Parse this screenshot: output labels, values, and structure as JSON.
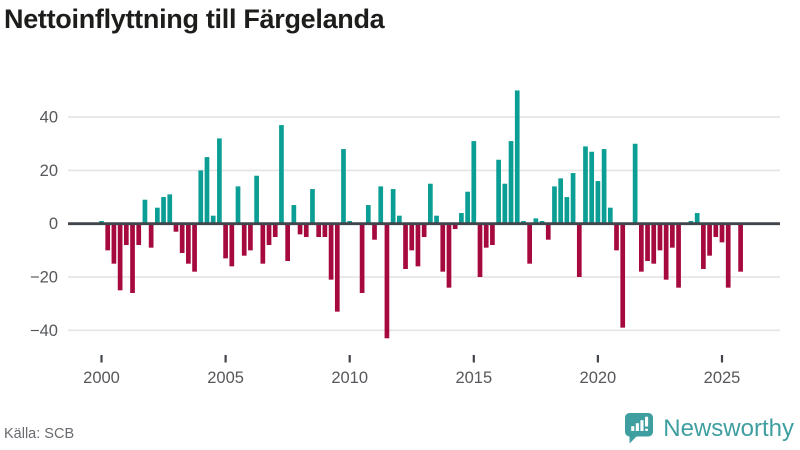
{
  "header": {
    "title": "Nettoinflyttning till Färgelanda"
  },
  "footer": {
    "source": "Källa: SCB",
    "brand": "Newsworthy"
  },
  "colors": {
    "positive": "#0b9e95",
    "negative": "#a6093d",
    "brand": "#3f9fa0",
    "grid": "#e4e4e4",
    "zero_line": "#41454c",
    "axis_text": "#56585b",
    "tick_mark": "#41454c"
  },
  "chart_data": {
    "type": "bar",
    "title": "Nettoinflyttning till Färgelanda",
    "frequency": "quarterly",
    "start_year": 2000,
    "xticks": [
      2000,
      2005,
      2010,
      2015,
      2020,
      2025
    ],
    "yticks": [
      40,
      20,
      0,
      -20,
      -40
    ],
    "ytick_labels": [
      "40",
      "20",
      "0",
      "−20",
      "−40"
    ],
    "ylim": [
      -50,
      55
    ],
    "grid": "horizontal",
    "legend": "none",
    "values": [
      1,
      -10,
      -15,
      -25,
      -8,
      -26,
      -8,
      9,
      -9,
      6,
      10,
      11,
      -3,
      -11,
      -15,
      -18,
      20,
      25,
      3,
      32,
      -13,
      -16,
      14,
      -12,
      -10,
      18,
      -15,
      -8,
      -5,
      37,
      -14,
      7,
      -4,
      -5,
      13,
      -5,
      -5,
      -21,
      -33,
      28,
      1,
      0,
      -26,
      7,
      -6,
      14,
      -43,
      13,
      3,
      -17,
      -10,
      -16,
      -5,
      15,
      3,
      -18,
      -24,
      -2,
      4,
      12,
      31,
      -20,
      -9,
      -8,
      24,
      15,
      31,
      50,
      1,
      -15,
      2,
      1,
      -6,
      14,
      17,
      10,
      19,
      -20,
      29,
      27,
      16,
      28,
      6,
      -10,
      -39,
      0,
      30,
      -18,
      -14,
      -15,
      -10,
      -21,
      -9,
      -24,
      0,
      1,
      4,
      -17,
      -12,
      -5,
      -7,
      -24,
      0,
      -18
    ]
  }
}
